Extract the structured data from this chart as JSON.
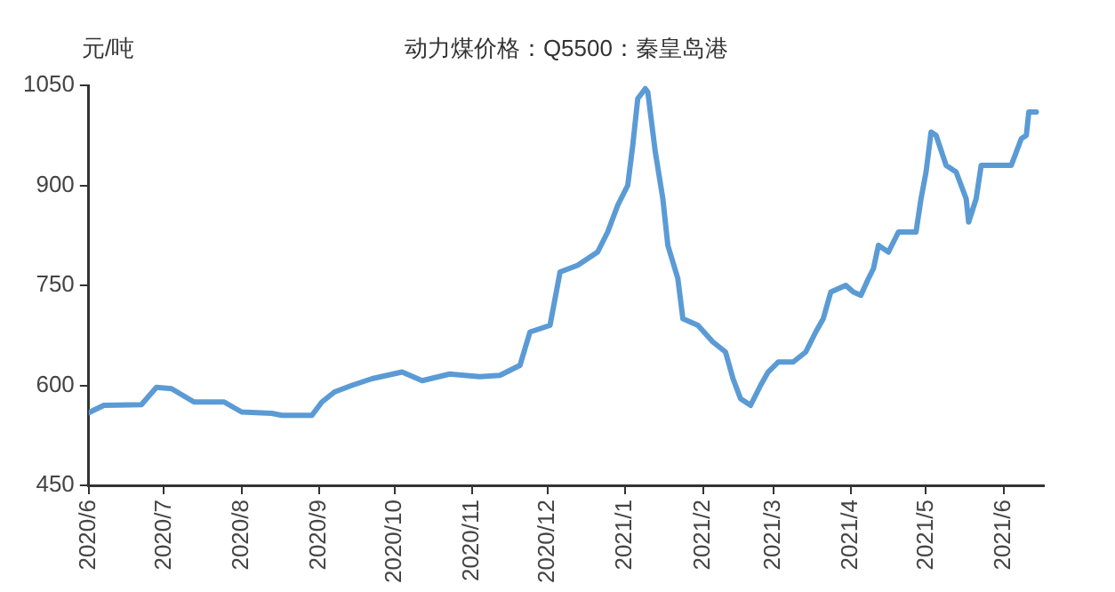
{
  "chart_data": {
    "type": "line",
    "title": "动力煤价格：Q5500：秦皇岛港",
    "ylabel": "元/吨",
    "x": [
      "2020-06-01",
      "2020-06-07",
      "2020-06-22",
      "2020-06-28",
      "2020-07-04",
      "2020-07-13",
      "2020-07-25",
      "2020-08-01",
      "2020-08-13",
      "2020-08-17",
      "2020-08-29",
      "2020-09-02",
      "2020-09-07",
      "2020-09-14",
      "2020-09-22",
      "2020-10-04",
      "2020-10-12",
      "2020-10-23",
      "2020-11-04",
      "2020-11-12",
      "2020-11-20",
      "2020-11-24",
      "2020-12-02",
      "2020-12-06",
      "2020-12-13",
      "2020-12-21",
      "2020-12-25",
      "2020-12-29",
      "2021-01-02",
      "2021-01-04",
      "2021-01-06",
      "2021-01-09",
      "2021-01-10",
      "2021-01-13",
      "2021-01-16",
      "2021-01-18",
      "2021-01-22",
      "2021-01-24",
      "2021-01-30",
      "2021-02-05",
      "2021-02-10",
      "2021-02-13",
      "2021-02-16",
      "2021-02-20",
      "2021-02-24",
      "2021-02-27",
      "2021-03-03",
      "2021-03-09",
      "2021-03-14",
      "2021-03-18",
      "2021-03-21",
      "2021-03-24",
      "2021-03-30",
      "2021-04-02",
      "2021-04-05",
      "2021-04-08",
      "2021-04-10",
      "2021-04-12",
      "2021-04-16",
      "2021-04-20",
      "2021-04-27",
      "2021-04-29",
      "2021-05-01",
      "2021-05-03",
      "2021-05-05",
      "2021-05-09",
      "2021-05-13",
      "2021-05-17",
      "2021-05-18",
      "2021-05-21",
      "2021-05-23",
      "2021-06-04",
      "2021-06-08",
      "2021-06-10",
      "2021-06-11",
      "2021-06-14"
    ],
    "series": [
      {
        "color": "#5b9bd5",
        "values": [
          559,
          570,
          571,
          597,
          595,
          575,
          575,
          560,
          558,
          555,
          555,
          575,
          590,
          600,
          610,
          620,
          607,
          617,
          613,
          615,
          630,
          680,
          690,
          770,
          780,
          800,
          830,
          870,
          900,
          960,
          1030,
          1045,
          1040,
          950,
          880,
          810,
          760,
          700,
          690,
          665,
          650,
          610,
          580,
          570,
          600,
          620,
          635,
          635,
          650,
          680,
          700,
          740,
          750,
          740,
          735,
          760,
          775,
          810,
          800,
          830,
          830,
          880,
          920,
          980,
          975,
          930,
          920,
          880,
          845,
          880,
          930,
          930,
          970,
          975,
          1010,
          1010
        ]
      }
    ],
    "xlim": [
      "2020-06-01",
      "2021-06-17"
    ],
    "xticks": [
      {
        "value": "2020-06-01",
        "label": "2020/6"
      },
      {
        "value": "2020-07-01",
        "label": "2020/7"
      },
      {
        "value": "2020-08-01",
        "label": "2020/8"
      },
      {
        "value": "2020-09-01",
        "label": "2020/9"
      },
      {
        "value": "2020-10-01",
        "label": "2020/10"
      },
      {
        "value": "2020-11-01",
        "label": "2020/11"
      },
      {
        "value": "2020-12-01",
        "label": "2020/12"
      },
      {
        "value": "2021-01-01",
        "label": "2021/1"
      },
      {
        "value": "2021-02-01",
        "label": "2021/2"
      },
      {
        "value": "2021-03-01",
        "label": "2021/3"
      },
      {
        "value": "2021-04-01",
        "label": "2021/4"
      },
      {
        "value": "2021-05-01",
        "label": "2021/5"
      },
      {
        "value": "2021-06-01",
        "label": "2021/6"
      }
    ],
    "ylim": [
      450,
      1050
    ],
    "yticks": [
      450,
      600,
      750,
      900,
      1050
    ],
    "grid": false,
    "legend": false,
    "marker": "none",
    "line_style": "solid"
  }
}
